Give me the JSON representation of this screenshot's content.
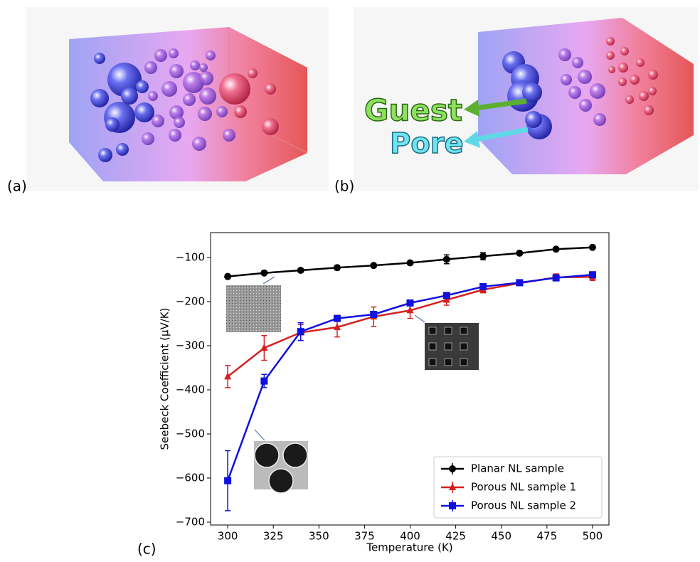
{
  "panels": {
    "a": {
      "label": "(a)"
    },
    "b": {
      "label": "(b)",
      "annotations": [
        "Guest",
        "Pore"
      ]
    }
  },
  "chart_data": {
    "type": "line",
    "panel_label": "(c)",
    "x_label": "Temperature (K)",
    "y_label": "Seebeck Coefficient (μV/K)",
    "x": [
      300,
      320,
      340,
      360,
      380,
      400,
      420,
      440,
      460,
      480,
      500
    ],
    "series": [
      {
        "name": "Planar NL sample",
        "color": "#000000",
        "marker": "circle",
        "values": [
          -143,
          -135,
          -129,
          -123,
          -118,
          -112,
          -104,
          -97,
          -90,
          -81,
          -77
        ],
        "errors": [
          5,
          4,
          4,
          5,
          3,
          3,
          10,
          8,
          3,
          3,
          4
        ]
      },
      {
        "name": "Porous NL sample 1",
        "color": "#d62020",
        "marker": "triangle",
        "values": [
          -370,
          -305,
          -270,
          -258,
          -234,
          -220,
          -196,
          -173,
          -158,
          -145,
          -144
        ],
        "errors": [
          25,
          28,
          18,
          22,
          22,
          18,
          12,
          7,
          4,
          8,
          8
        ]
      },
      {
        "name": "Porous NL sample 2",
        "color": "#1010e0",
        "marker": "square",
        "values": [
          -606,
          -380,
          -268,
          -238,
          -229,
          -203,
          -186,
          -166,
          -157,
          -146,
          -139
        ],
        "errors": [
          68,
          15,
          20,
          7,
          6,
          4,
          5,
          4,
          3,
          4,
          4
        ]
      }
    ],
    "xlim": [
      290.6,
      509
    ],
    "ylim": [
      -706.5,
      -43.5
    ],
    "xticks": [
      300,
      325,
      350,
      375,
      400,
      425,
      450,
      475,
      500
    ],
    "yticks": [
      {
        "value": -700,
        "label": "−700"
      },
      {
        "value": -600,
        "label": "−600"
      },
      {
        "value": -500,
        "label": "−500"
      },
      {
        "value": -400,
        "label": "−400"
      },
      {
        "value": -300,
        "label": "−300"
      },
      {
        "value": -200,
        "label": "−200"
      },
      {
        "value": -100,
        "label": "−100"
      }
    ],
    "legend": "lower right"
  }
}
